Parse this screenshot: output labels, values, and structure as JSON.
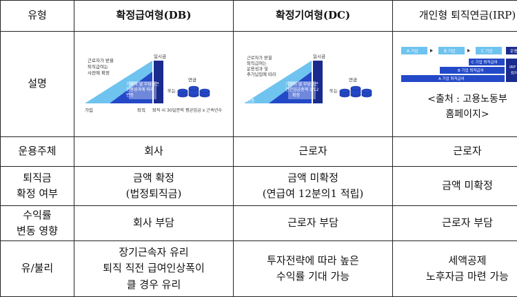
{
  "headers": [
    "유형",
    "확정급여형(DB)",
    "확정기여형(DC)",
    "개인형 퇴직연금(IRP)"
  ],
  "description": {
    "label": "설명",
    "db": {
      "line1": "근로자가 받을",
      "line2": "퇴직급여는",
      "line3": "사전에 확정",
      "lump": "일시금",
      "overlay1": "기업이 낼 부담금은",
      "overlay2": "운용성과에 따라",
      "overlay3": "변동",
      "or": "또는",
      "pension": "연금",
      "axis_start": "가입",
      "axis_end": "퇴직",
      "formula": "퇴직 시 30일분의 평균임금 x 근속년수"
    },
    "dc": {
      "line1": "근로자가 받을",
      "line2": "퇴직급여는",
      "line3": "운용성과 및",
      "line4": "추가납입에 따라",
      "line5": "변동",
      "lump": "일시금",
      "overlay1": "기업이 낼 부담금은",
      "overlay2": "연간임금총액 1/12",
      "overlay3": "확정",
      "or": "또는",
      "pension": "연금"
    },
    "irp": {
      "company_a": "A 기업",
      "company_b": "B 기업",
      "company_c": "C 기업",
      "operation": "운용상품",
      "c_benefit": "C 기업 퇴직급여",
      "b_benefit": "B 기업 퇴직급여",
      "a_benefit": "A 기업 퇴직급여",
      "irp_label1": "IRP 통산",
      "irp_label2": "퇴직급여",
      "source_line1": "<출처 : 고용노동부",
      "source_line2": "홈페이지>"
    }
  },
  "rows": {
    "operator": {
      "label": "운용주체",
      "db": "회사",
      "dc": "근로자",
      "irp": "근로자"
    },
    "fixed": {
      "label_line1": "퇴직금",
      "label_line2": "확정 여부",
      "db_line1": "금액 확정",
      "db_line2": "(법정퇴직금)",
      "dc_line1": "금액 미확정",
      "dc_line2": "(연급여 12분의1 적립)",
      "irp": "금액 미확정"
    },
    "variance": {
      "label_line1": "수익률",
      "label_line2": "변동 영향",
      "db": "회사 부담",
      "dc": "근로자 부담",
      "irp": "근로자 부담"
    },
    "pros_cons": {
      "label": "유/불리",
      "db_line1": "장기근속자 유리",
      "db_line2": "퇴직 직전 급여인상폭이",
      "db_line3": "클 경우 유리",
      "dc_line1": "투자전략에 따라 높은",
      "dc_line2": "수익률 기대 가능",
      "irp_line1": "세액공제",
      "irp_line2": "노후자금 마련 가능"
    }
  },
  "colors": {
    "light_blue": "#6fc3ef",
    "deep_blue": "#2349c8",
    "navy": "#1a2b8e"
  }
}
